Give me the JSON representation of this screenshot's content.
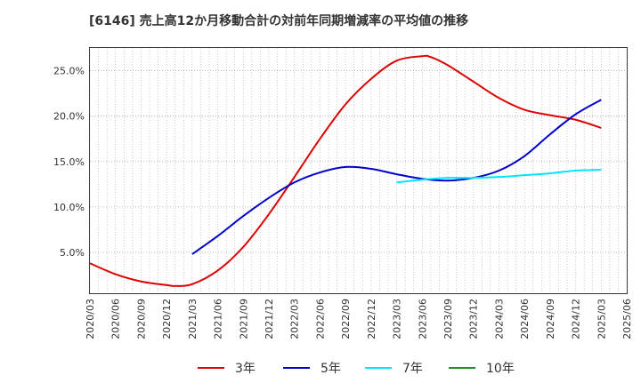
{
  "chart_data": {
    "type": "line",
    "title": "[6146]  売上高12か月移動合計の対前年同期増減率の平均値の推移",
    "xlabel": "",
    "ylabel": "",
    "x_ticks": [
      "2020/03",
      "2020/06",
      "2020/09",
      "2020/12",
      "2021/03",
      "2021/06",
      "2021/09",
      "2021/12",
      "2022/03",
      "2022/06",
      "2022/09",
      "2022/12",
      "2023/03",
      "2023/06",
      "2023/09",
      "2023/12",
      "2024/03",
      "2024/06",
      "2024/09",
      "2024/12",
      "2025/03",
      "2025/06"
    ],
    "y_ticks": [
      "5.0%",
      "10.0%",
      "15.0%",
      "20.0%",
      "25.0%"
    ],
    "y_tick_values": [
      5,
      10,
      15,
      20,
      25
    ],
    "ylim": [
      0.5,
      27.5
    ],
    "grid": true,
    "legend_position": "bottom",
    "series": [
      {
        "name": "3年",
        "color": "#dd0000",
        "x": [
          "2020/03",
          "2020/06",
          "2020/09",
          "2020/12",
          "2021/01",
          "2021/03",
          "2021/06",
          "2021/09",
          "2021/12",
          "2022/03",
          "2022/06",
          "2022/09",
          "2022/12",
          "2023/03",
          "2023/06",
          "2023/07",
          "2023/09",
          "2023/12",
          "2024/03",
          "2024/06",
          "2024/09",
          "2024/12",
          "2025/03"
        ],
        "values": [
          3.8,
          2.6,
          1.8,
          1.4,
          1.3,
          1.5,
          3.0,
          5.6,
          9.2,
          13.3,
          17.5,
          21.3,
          24.1,
          26.1,
          26.6,
          26.5,
          25.6,
          23.8,
          22.0,
          20.7,
          20.1,
          19.6,
          18.7
        ]
      },
      {
        "name": "5年",
        "color": "#0000cc",
        "x": [
          "2021/03",
          "2021/06",
          "2021/09",
          "2021/12",
          "2022/03",
          "2022/06",
          "2022/09",
          "2022/12",
          "2023/03",
          "2023/06",
          "2023/09",
          "2023/12",
          "2024/03",
          "2024/06",
          "2024/09",
          "2024/12",
          "2025/03"
        ],
        "values": [
          4.8,
          6.8,
          9.0,
          11.0,
          12.7,
          13.8,
          14.4,
          14.2,
          13.6,
          13.1,
          12.9,
          13.2,
          14.0,
          15.6,
          18.0,
          20.2,
          21.8
        ]
      },
      {
        "name": "7年",
        "color": "#00e5ff",
        "x": [
          "2023/03",
          "2023/06",
          "2023/09",
          "2023/12",
          "2024/03",
          "2024/06",
          "2024/09",
          "2024/12",
          "2025/03"
        ],
        "values": [
          12.7,
          13.0,
          13.2,
          13.2,
          13.3,
          13.5,
          13.7,
          14.0,
          14.1
        ]
      },
      {
        "name": "10年",
        "color": "#228b22",
        "x": [],
        "values": []
      }
    ]
  }
}
